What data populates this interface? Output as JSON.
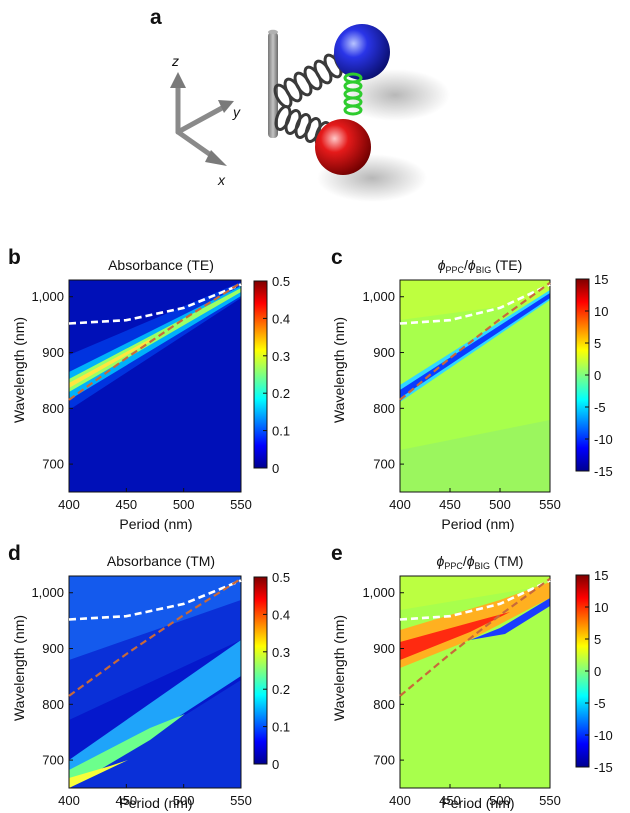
{
  "panel_a": {
    "letter": "a",
    "axis_labels": {
      "z": "z",
      "y": "y",
      "x": "x"
    }
  },
  "colorbar_ticks_absorbance": [
    "0.5",
    "0.4",
    "0.3",
    "0.2",
    "0.1",
    "0"
  ],
  "colorbar_ticks_phase": [
    "15",
    "10",
    "5",
    "0",
    "-5",
    "-10",
    "-15"
  ],
  "chart_data": [
    {
      "panel": "b",
      "type": "heatmap",
      "title": "Absorbance (TE)",
      "xlabel": "Period (nm)",
      "ylabel": "Wavelength (nm)",
      "xlim": [
        400,
        550
      ],
      "ylim": [
        650,
        1030
      ],
      "x_ticks": [
        "400",
        "450",
        "500",
        "550"
      ],
      "y_ticks": [
        "700",
        "800",
        "900",
        "1,000"
      ],
      "colorbar": {
        "min": 0,
        "max": 0.5,
        "colormap": "jet"
      },
      "curves": [
        {
          "style": "white dashed",
          "x": [
            400,
            450,
            500,
            550
          ],
          "y": [
            952,
            958,
            980,
            1022
          ]
        },
        {
          "style": "orange-brown dashed",
          "x": [
            400,
            450,
            500,
            550
          ],
          "y": [
            815,
            890,
            960,
            1025
          ]
        }
      ]
    },
    {
      "panel": "c",
      "type": "heatmap",
      "title": "ϕPPC/ϕBIG (TE)",
      "title_parts": {
        "phi1": "ϕ",
        "sub1": "PPC",
        "slash": "/",
        "phi2": "ϕ",
        "sub2": "BIG",
        "rest": " (TE)"
      },
      "xlabel": "Period (nm)",
      "ylabel": "Wavelength (nm)",
      "xlim": [
        400,
        550
      ],
      "ylim": [
        650,
        1030
      ],
      "x_ticks": [
        "400",
        "450",
        "500",
        "550"
      ],
      "y_ticks": [
        "700",
        "800",
        "900",
        "1,000"
      ],
      "colorbar": {
        "min": -15,
        "max": 15,
        "colormap": "jet"
      },
      "curves": [
        {
          "style": "white dashed",
          "x": [
            400,
            450,
            500,
            550
          ],
          "y": [
            952,
            958,
            980,
            1022
          ]
        },
        {
          "style": "orange-brown dashed",
          "x": [
            400,
            450,
            500,
            550
          ],
          "y": [
            815,
            890,
            960,
            1025
          ]
        }
      ]
    },
    {
      "panel": "d",
      "type": "heatmap",
      "title": "Absorbance (TM)",
      "xlabel": "Period (nm)",
      "ylabel": "Wavelength (nm)",
      "xlim": [
        400,
        550
      ],
      "ylim": [
        650,
        1030
      ],
      "x_ticks": [
        "400",
        "450",
        "500",
        "550"
      ],
      "y_ticks": [
        "700",
        "800",
        "900",
        "1,000"
      ],
      "colorbar": {
        "min": 0,
        "max": 0.5,
        "colormap": "jet"
      },
      "curves": [
        {
          "style": "white dashed",
          "x": [
            400,
            450,
            500,
            550
          ],
          "y": [
            952,
            958,
            980,
            1022
          ]
        },
        {
          "style": "orange-brown dashed",
          "x": [
            400,
            450,
            500,
            550
          ],
          "y": [
            815,
            890,
            960,
            1025
          ]
        }
      ]
    },
    {
      "panel": "e",
      "type": "heatmap",
      "title": "ϕPPC/ϕBIG (TM)",
      "title_parts": {
        "phi1": "ϕ",
        "sub1": "PPC",
        "slash": "/",
        "phi2": "ϕ",
        "sub2": "BIG",
        "rest": " (TM)"
      },
      "xlabel": "Period (nm)",
      "ylabel": "Wavelength (nm)",
      "xlim": [
        400,
        550
      ],
      "ylim": [
        650,
        1030
      ],
      "x_ticks": [
        "400",
        "450",
        "500",
        "550"
      ],
      "y_ticks": [
        "700",
        "800",
        "900",
        "1,000"
      ],
      "colorbar": {
        "min": -15,
        "max": 15,
        "colormap": "jet"
      },
      "curves": [
        {
          "style": "white dashed",
          "x": [
            400,
            450,
            500,
            550
          ],
          "y": [
            952,
            958,
            980,
            1022
          ]
        },
        {
          "style": "orange-brown dashed",
          "x": [
            400,
            450,
            500,
            550
          ],
          "y": [
            815,
            890,
            960,
            1025
          ]
        }
      ]
    }
  ]
}
